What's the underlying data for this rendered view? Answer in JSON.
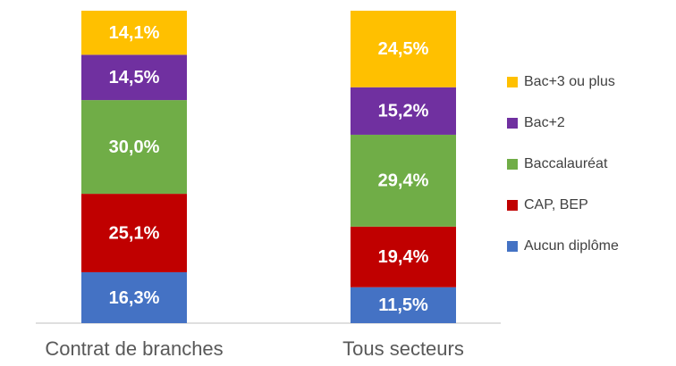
{
  "chart_data": {
    "type": "stacked_bar",
    "categories": [
      "Contrat de branches",
      "Tous secteurs"
    ],
    "series": [
      {
        "name": "Aucun diplôme",
        "color": "#4472C4",
        "values": [
          16.3,
          11.5
        ],
        "value_labels": [
          "16,3%",
          "11,5%"
        ]
      },
      {
        "name": "CAP, BEP",
        "color": "#C00000",
        "values": [
          25.1,
          19.4
        ],
        "value_labels": [
          "25,1%",
          "19,4%"
        ]
      },
      {
        "name": "Baccalauréat",
        "color": "#70AD47",
        "values": [
          30.0,
          29.4
        ],
        "value_labels": [
          "30,0%",
          "29,4%"
        ]
      },
      {
        "name": "Bac+2",
        "color": "#7030A0",
        "values": [
          14.5,
          15.2
        ],
        "value_labels": [
          "14,5%",
          "15,2%"
        ]
      },
      {
        "name": "Bac+3 ou plus",
        "color": "#FFC000",
        "values": [
          14.1,
          24.5
        ],
        "value_labels": [
          "14,1%",
          "24,5%"
        ]
      }
    ],
    "ylim": [
      0,
      100
    ],
    "legend": "right"
  }
}
